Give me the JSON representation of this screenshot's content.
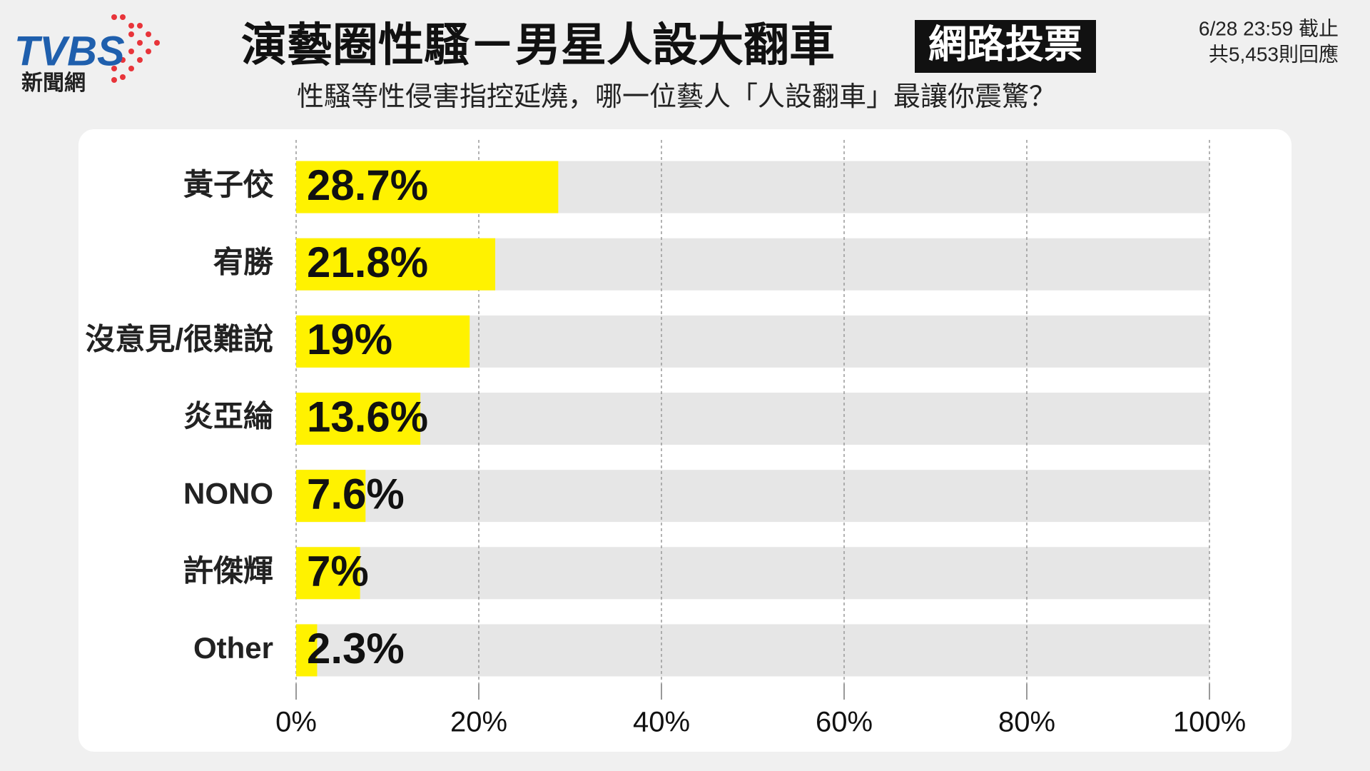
{
  "chart_data": {
    "type": "bar",
    "orientation": "horizontal",
    "logo": {
      "brand": "TVBS",
      "sub": "新聞網"
    },
    "title": "演藝圈性騷－男星人設大翻車",
    "badge": "網路投票",
    "subtitle": "性騷等性侵害指控延燒，哪一位藝人「人設翻車」最讓你震驚？",
    "annotations": [
      "6/28 23:59 截止",
      "共5,453則回應"
    ],
    "categories": [
      "黃子佼",
      "宥勝",
      "沒意見/很難說",
      "炎亞綸",
      "NONO",
      "許傑輝",
      "Other"
    ],
    "values": [
      28.7,
      21.8,
      19,
      13.6,
      7.6,
      7,
      2.3
    ],
    "value_labels": [
      "28.7%",
      "21.8%",
      "19%",
      "13.6%",
      "7.6%",
      "7%",
      "2.3%"
    ],
    "color": "#fff200",
    "track_color": "#e6e6e6",
    "xlim": [
      0,
      100
    ],
    "xticks": [
      {
        "value": 0,
        "label": "0%"
      },
      {
        "value": 20,
        "label": "20%"
      },
      {
        "value": 40,
        "label": "40%"
      },
      {
        "value": 60,
        "label": "60%"
      },
      {
        "value": 80,
        "label": "80%"
      },
      {
        "value": 100,
        "label": "100%"
      }
    ],
    "grid": true
  }
}
